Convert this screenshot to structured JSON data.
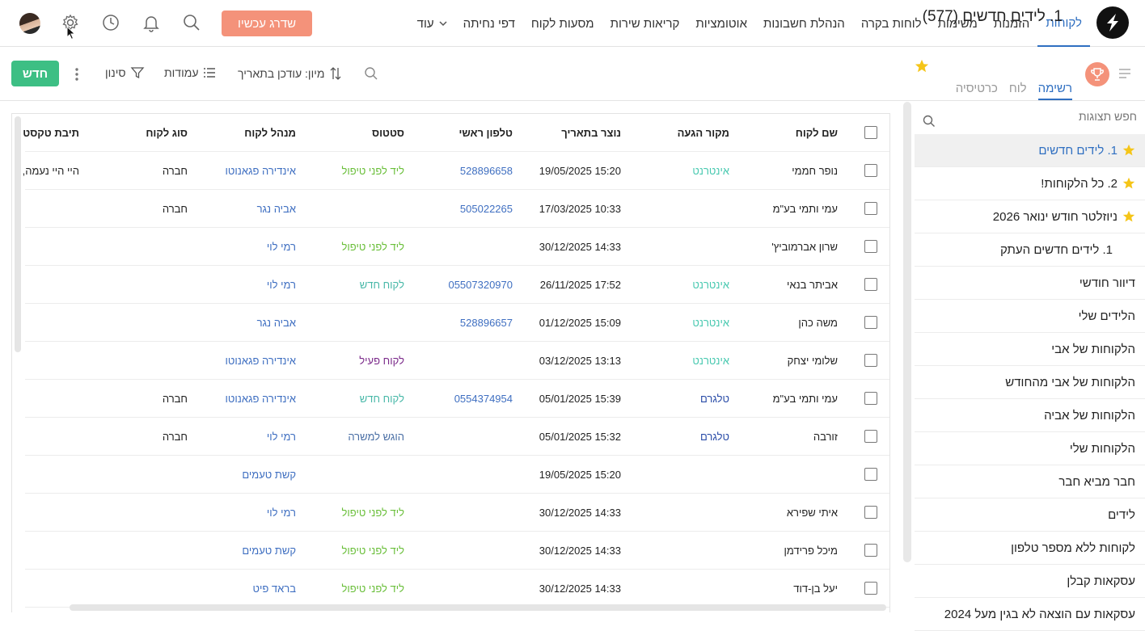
{
  "nav": {
    "items": [
      "לקוחות",
      "הזמנות",
      "משימות",
      "לוחות בקרה",
      "הנהלת חשבונות",
      "אוטומציות",
      "קריאות שירות",
      "מסעות לקוח",
      "דפי נחיתה"
    ],
    "more_label": "עוד",
    "upgrade_label": "שדרג עכשיו",
    "icons": [
      "search-icon",
      "bell-icon",
      "clock-icon",
      "gear-icon"
    ]
  },
  "view": {
    "title": "1. לידים חדשים (577)",
    "tabs": [
      "רשימה",
      "לוח",
      "כרטיסיה"
    ],
    "active_tab": "רשימה",
    "new_label": "חדש",
    "filter_label": "סינון",
    "columns_label": "עמודות",
    "sort_label": "מיון: עודכן בתאריך"
  },
  "sidebar": {
    "search_placeholder": "חפש תצוגות",
    "items": [
      {
        "label": "1. לידים חדשים",
        "starred": true,
        "active": true
      },
      {
        "label": "2. כל הלקוחות!",
        "starred": true
      },
      {
        "label": "ניוזלטר חודש ינואר 2026",
        "starred": true
      },
      {
        "label": "1. לידים חדשים העתק"
      },
      {
        "label": "דיוור חודשי"
      },
      {
        "label": "הלידים שלי"
      },
      {
        "label": "הלקוחות של אבי"
      },
      {
        "label": "הלקוחות של אבי מהחודש"
      },
      {
        "label": "הלקוחות של אביה"
      },
      {
        "label": "הלקוחות שלי"
      },
      {
        "label": "חבר מביא חבר"
      },
      {
        "label": "לידים"
      },
      {
        "label": "לקוחות ללא מספר טלפון"
      },
      {
        "label": "עסקאות קבלן"
      },
      {
        "label": "עסקאות עם הוצאה לא בגין מעל 2024"
      }
    ]
  },
  "table": {
    "headers": {
      "name": "שם לקוח",
      "source": "מקור הגעה",
      "date": "נוצר בתאריך",
      "phone": "טלפון ראשי",
      "status": "סטטוס",
      "manager": "מנהל לקוח",
      "type": "סוג לקוח",
      "text": "תיבת טקסט"
    },
    "rows": [
      {
        "name": "נופר חממי",
        "source": "אינטרנט",
        "date": "19/05/2025 15:20",
        "phone": "528896658",
        "status": "ליד לפני טיפול",
        "manager": "אינדירה פגאנוטו",
        "type": "חברה",
        "text": "היי היי נעמה,"
      },
      {
        "name": "עמי ותמי בע\"מ",
        "source": "",
        "date": "17/03/2025 10:33",
        "phone": "505022265",
        "status": "",
        "manager": "אביה נגר",
        "type": "חברה",
        "text": ""
      },
      {
        "name": "שרון אברמוביץ'",
        "source": "",
        "date": "30/12/2025 14:33",
        "phone": "",
        "status": "ליד לפני טיפול",
        "manager": "רמי לוי",
        "type": "",
        "text": ""
      },
      {
        "name": "אביתר בנאי",
        "source": "אינטרנט",
        "date": "26/11/2025 17:52",
        "phone": "05507320970",
        "status": "לקוח חדש",
        "manager": "רמי לוי",
        "type": "",
        "text": ""
      },
      {
        "name": "משה כהן",
        "source": "אינטרנט",
        "date": "01/12/2025 15:09",
        "phone": "528896657",
        "status": "",
        "manager": "אביה נגר",
        "type": "",
        "text": ""
      },
      {
        "name": "שלומי יצחק",
        "source": "אינטרנט",
        "date": "03/12/2025 13:13",
        "phone": "",
        "status": "לקוח פעיל",
        "manager": "אינדירה פגאנוטו",
        "type": "",
        "text": ""
      },
      {
        "name": "עמי ותמי בע\"מ",
        "source": "טלגרם",
        "date": "05/01/2025 15:39",
        "phone": "0554374954",
        "status": "לקוח חדש",
        "manager": "אינדירה פגאנוטו",
        "type": "חברה",
        "text": ""
      },
      {
        "name": "זורבה",
        "source": "טלגרם",
        "date": "05/01/2025 15:32",
        "phone": "",
        "status": "הוגש למשרה",
        "manager": "רמי לוי",
        "type": "חברה",
        "text": ""
      },
      {
        "name": "",
        "source": "",
        "date": "19/05/2025 15:20",
        "phone": "",
        "status": "",
        "manager": "קשת טעמים",
        "type": "",
        "text": ""
      },
      {
        "name": "איתי שפירא",
        "source": "",
        "date": "30/12/2025 14:33",
        "phone": "",
        "status": "ליד לפני טיפול",
        "manager": "רמי לוי",
        "type": "",
        "text": ""
      },
      {
        "name": "מיכל פרידמן",
        "source": "",
        "date": "30/12/2025 14:33",
        "phone": "",
        "status": "ליד לפני טיפול",
        "manager": "קשת טעמים",
        "type": "",
        "text": ""
      },
      {
        "name": "יעל בן-דוד",
        "source": "",
        "date": "30/12/2025 14:33",
        "phone": "",
        "status": "ליד לפני טיפול",
        "manager": "בראד פיט",
        "type": "",
        "text": ""
      }
    ]
  },
  "colors": {
    "accent": "#2f6fc1",
    "upgrade": "#f4927a",
    "new_button": "#3dbf84",
    "star": "#f5c518",
    "source_internet": "#48c9b0",
    "source_telegram": "#2b4da8",
    "status_green": "#6abf3a"
  }
}
